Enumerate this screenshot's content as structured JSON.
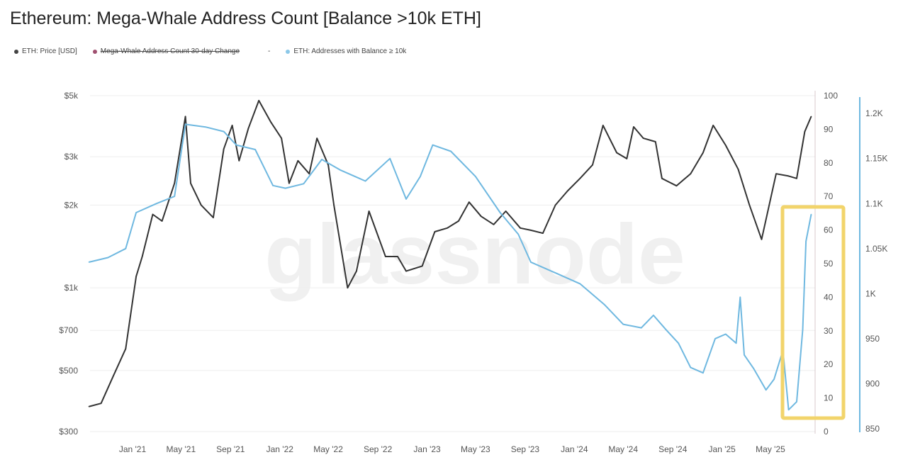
{
  "title": "Ethereum: Mega-Whale Address Count [Balance >10k ETH]",
  "watermark": "glassnode",
  "colors": {
    "price": "#333333",
    "change": "#a05070",
    "addresses": "#6fb8e0",
    "highlight": "#f2d46b"
  },
  "legend": [
    {
      "label": "ETH: Price [USD]",
      "color": "#444444",
      "struck": false
    },
    {
      "label": "Mega-Whale Address Count 30-day Change",
      "color": "#a05070",
      "struck": true
    },
    {
      "label": "-",
      "color": "",
      "struck": false
    },
    {
      "label": "ETH: Addresses with Balance ≥ 10k",
      "color": "#8cc8e8",
      "struck": false
    }
  ],
  "chart_data": {
    "type": "line",
    "title": "Ethereum: Mega-Whale Address Count [Balance >10k ETH]",
    "x_ticks": [
      "Jan '21",
      "May '21",
      "Sep '21",
      "Jan '22",
      "May '22",
      "Sep '22",
      "Jan '23",
      "May '23",
      "Sep '23",
      "Jan '24",
      "May '24",
      "Sep '24",
      "Jan '25",
      "May '25"
    ],
    "x_tick_dates": [
      "2021-01-01",
      "2021-05-01",
      "2021-09-01",
      "2022-01-01",
      "2022-05-01",
      "2022-09-01",
      "2023-01-01",
      "2023-05-01",
      "2023-09-01",
      "2024-01-01",
      "2024-05-01",
      "2024-09-01",
      "2025-01-01",
      "2025-05-01"
    ],
    "x_range": [
      "2020-09-15",
      "2025-08-10"
    ],
    "y_left": {
      "scale": "log",
      "range": [
        300,
        5000
      ],
      "ticks": [
        300,
        500,
        700,
        1000,
        2000,
        3000,
        5000
      ],
      "tick_labels": [
        "$300",
        "$500",
        "$700",
        "$1k",
        "$2k",
        "$3k",
        "$5k"
      ]
    },
    "y_mid": {
      "scale": "linear",
      "range": [
        0,
        100
      ],
      "ticks": [
        "0",
        "10",
        "20",
        "30",
        "40",
        "50",
        "60",
        "70",
        "80",
        "90",
        "100"
      ]
    },
    "y_right": {
      "scale": "linear",
      "range": [
        850,
        1220
      ],
      "ticks": [
        850,
        900,
        950,
        1000,
        1050,
        1100,
        1150,
        1200
      ],
      "tick_labels": [
        "850",
        "900",
        "950",
        "1K",
        "1.05K",
        "1.1K",
        "1.15K",
        "1.2K"
      ]
    },
    "grid": true,
    "legend_placement": "top-left",
    "highlight_box": {
      "from": "2025-05-01",
      "label": ""
    },
    "series": [
      {
        "name": "ETH: Price [USD]",
        "axis": "left",
        "color": "#333333",
        "points": [
          [
            "2020-09-15",
            370
          ],
          [
            "2020-10-15",
            380
          ],
          [
            "2020-11-15",
            480
          ],
          [
            "2020-12-15",
            600
          ],
          [
            "2021-01-10",
            1100
          ],
          [
            "2021-01-25",
            1300
          ],
          [
            "2021-02-20",
            1850
          ],
          [
            "2021-03-15",
            1750
          ],
          [
            "2021-04-15",
            2400
          ],
          [
            "2021-05-12",
            4200
          ],
          [
            "2021-05-25",
            2400
          ],
          [
            "2021-06-20",
            2000
          ],
          [
            "2021-07-20",
            1800
          ],
          [
            "2021-08-15",
            3200
          ],
          [
            "2021-09-05",
            3900
          ],
          [
            "2021-09-22",
            2900
          ],
          [
            "2021-10-15",
            3800
          ],
          [
            "2021-11-10",
            4800
          ],
          [
            "2021-12-10",
            4000
          ],
          [
            "2022-01-05",
            3500
          ],
          [
            "2022-01-24",
            2400
          ],
          [
            "2022-02-15",
            2900
          ],
          [
            "2022-03-15",
            2600
          ],
          [
            "2022-04-03",
            3500
          ],
          [
            "2022-05-01",
            2800
          ],
          [
            "2022-05-15",
            2000
          ],
          [
            "2022-06-18",
            1000
          ],
          [
            "2022-07-10",
            1150
          ],
          [
            "2022-08-10",
            1900
          ],
          [
            "2022-09-20",
            1300
          ],
          [
            "2022-10-20",
            1300
          ],
          [
            "2022-11-10",
            1150
          ],
          [
            "2022-12-20",
            1200
          ],
          [
            "2023-01-20",
            1600
          ],
          [
            "2023-02-20",
            1650
          ],
          [
            "2023-03-20",
            1750
          ],
          [
            "2023-04-15",
            2050
          ],
          [
            "2023-05-15",
            1820
          ],
          [
            "2023-06-15",
            1700
          ],
          [
            "2023-07-15",
            1900
          ],
          [
            "2023-08-20",
            1650
          ],
          [
            "2023-09-15",
            1620
          ],
          [
            "2023-10-15",
            1580
          ],
          [
            "2023-11-15",
            2000
          ],
          [
            "2023-12-15",
            2250
          ],
          [
            "2024-01-15",
            2500
          ],
          [
            "2024-02-15",
            2800
          ],
          [
            "2024-03-12",
            3900
          ],
          [
            "2024-04-15",
            3100
          ],
          [
            "2024-05-10",
            2950
          ],
          [
            "2024-05-27",
            3850
          ],
          [
            "2024-06-20",
            3500
          ],
          [
            "2024-07-20",
            3400
          ],
          [
            "2024-08-05",
            2500
          ],
          [
            "2024-09-10",
            2350
          ],
          [
            "2024-10-15",
            2600
          ],
          [
            "2024-11-15",
            3100
          ],
          [
            "2024-12-10",
            3900
          ],
          [
            "2025-01-10",
            3300
          ],
          [
            "2025-02-10",
            2700
          ],
          [
            "2025-03-10",
            2000
          ],
          [
            "2025-04-09",
            1500
          ],
          [
            "2025-05-15",
            2600
          ],
          [
            "2025-06-15",
            2550
          ],
          [
            "2025-07-05",
            2500
          ],
          [
            "2025-07-25",
            3700
          ],
          [
            "2025-08-10",
            4200
          ]
        ]
      },
      {
        "name": "ETH: Addresses with Balance ≥ 10k",
        "axis": "right",
        "color": "#6fb8e0",
        "points": [
          [
            "2020-09-15",
            1035
          ],
          [
            "2020-11-01",
            1040
          ],
          [
            "2020-12-15",
            1050
          ],
          [
            "2021-01-10",
            1090
          ],
          [
            "2021-03-01",
            1100
          ],
          [
            "2021-04-15",
            1108
          ],
          [
            "2021-05-12",
            1188
          ],
          [
            "2021-07-01",
            1185
          ],
          [
            "2021-08-15",
            1180
          ],
          [
            "2021-09-15",
            1165
          ],
          [
            "2021-11-01",
            1160
          ],
          [
            "2021-12-15",
            1120
          ],
          [
            "2022-01-15",
            1117
          ],
          [
            "2022-03-01",
            1122
          ],
          [
            "2022-04-15",
            1149
          ],
          [
            "2022-06-01",
            1137
          ],
          [
            "2022-08-01",
            1125
          ],
          [
            "2022-10-01",
            1150
          ],
          [
            "2022-11-10",
            1105
          ],
          [
            "2022-12-15",
            1130
          ],
          [
            "2023-01-15",
            1165
          ],
          [
            "2023-03-01",
            1158
          ],
          [
            "2023-05-01",
            1130
          ],
          [
            "2023-07-01",
            1090
          ],
          [
            "2023-08-15",
            1066
          ],
          [
            "2023-09-15",
            1035
          ],
          [
            "2023-11-15",
            1023
          ],
          [
            "2024-01-15",
            1011
          ],
          [
            "2024-03-15",
            988
          ],
          [
            "2024-05-01",
            966
          ],
          [
            "2024-06-15",
            962
          ],
          [
            "2024-07-15",
            976
          ],
          [
            "2024-08-15",
            960
          ],
          [
            "2024-09-15",
            945
          ],
          [
            "2024-10-15",
            918
          ],
          [
            "2024-11-15",
            912
          ],
          [
            "2024-12-15",
            950
          ],
          [
            "2025-01-10",
            955
          ],
          [
            "2025-02-05",
            945
          ],
          [
            "2025-02-15",
            996
          ],
          [
            "2025-02-25",
            932
          ],
          [
            "2025-03-20",
            917
          ],
          [
            "2025-04-20",
            893
          ],
          [
            "2025-05-10",
            905
          ],
          [
            "2025-06-01",
            937
          ],
          [
            "2025-06-15",
            871
          ],
          [
            "2025-07-05",
            880
          ],
          [
            "2025-07-20",
            960
          ],
          [
            "2025-07-28",
            1058
          ],
          [
            "2025-08-10",
            1088
          ]
        ]
      }
    ]
  }
}
